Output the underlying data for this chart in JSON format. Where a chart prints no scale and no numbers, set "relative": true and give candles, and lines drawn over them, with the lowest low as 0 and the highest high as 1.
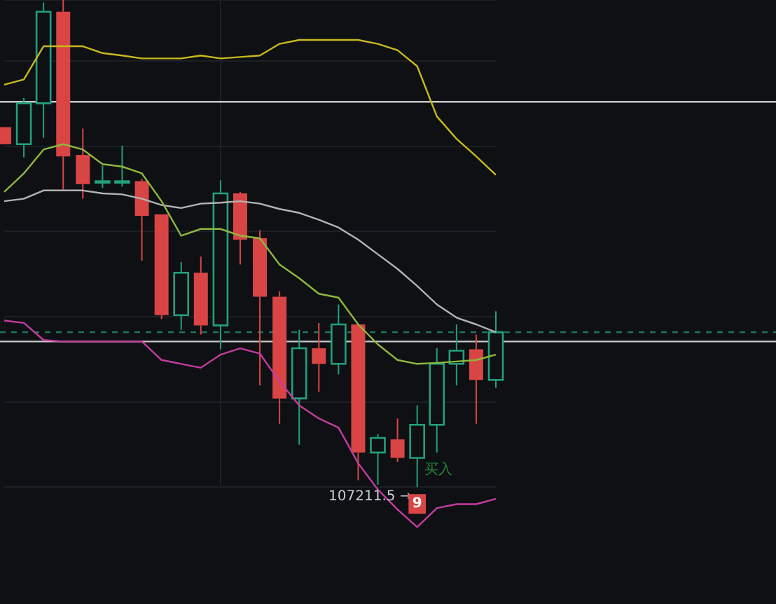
{
  "chart_data": {
    "type": "candlestick",
    "relative": true,
    "grid": true,
    "legend": false,
    "categories": [
      null,
      null,
      null,
      null,
      null,
      null,
      null,
      null,
      null,
      null,
      null,
      null,
      null,
      null,
      null,
      null,
      null,
      null,
      null,
      null,
      null,
      null,
      null,
      null,
      null,
      null
    ],
    "ohlc": [
      [
        0.739,
        0.739,
        0.704,
        0.704
      ],
      [
        0.704,
        0.799,
        0.677,
        0.788
      ],
      [
        0.788,
        0.995,
        0.717,
        0.976
      ],
      [
        0.976,
        1,
        0.611,
        0.679
      ],
      [
        0.682,
        0.736,
        0.592,
        0.622
      ],
      [
        0.625,
        0.66,
        0.614,
        0.628
      ],
      [
        0.625,
        0.701,
        0.617,
        0.628
      ],
      [
        0.628,
        0.633,
        0.465,
        0.557
      ],
      [
        0.56,
        0.56,
        0.345,
        0.353
      ],
      [
        0.353,
        0.462,
        0.323,
        0.44
      ],
      [
        0.44,
        0.473,
        0.313,
        0.332
      ],
      [
        0.332,
        0.63,
        0.283,
        0.603
      ],
      [
        0.603,
        0.606,
        0.457,
        0.508
      ],
      [
        0.511,
        0.527,
        0.209,
        0.391
      ],
      [
        0.391,
        0.402,
        0.13,
        0.182
      ],
      [
        0.182,
        0.323,
        0.087,
        0.285
      ],
      [
        0.285,
        0.337,
        0.196,
        0.253
      ],
      [
        0.253,
        0.375,
        0.231,
        0.334
      ],
      [
        0.334,
        0.334,
        0.014,
        0.071
      ],
      [
        0.071,
        0.109,
        0.005,
        0.101
      ],
      [
        0.098,
        0.141,
        0.052,
        0.06
      ],
      [
        0.06,
        0.168,
        0,
        0.128
      ],
      [
        0.128,
        0.285,
        0.071,
        0.253
      ],
      [
        0.253,
        0.334,
        0.209,
        0.28
      ],
      [
        0.283,
        0.313,
        0.13,
        0.22
      ],
      [
        0.22,
        0.361,
        0.204,
        0.318
      ]
    ],
    "series": [
      {
        "type": "line",
        "color": "#c9b91e",
        "values": [
          0.826,
          0.837,
          0.905,
          0.905,
          0.905,
          0.891,
          0.886,
          0.88,
          0.88,
          0.88,
          0.886,
          0.88,
          0.883,
          0.886,
          0.91,
          0.918,
          0.918,
          0.918,
          0.918,
          0.91,
          0.897,
          0.864,
          0.761,
          0.715,
          0.679,
          0.641
        ]
      },
      {
        "type": "line",
        "color": "#8fb83e",
        "values": [
          0.606,
          0.644,
          0.693,
          0.704,
          0.693,
          0.663,
          0.658,
          0.644,
          0.587,
          0.516,
          0.53,
          0.53,
          0.516,
          0.511,
          0.457,
          0.429,
          0.397,
          0.389,
          0.334,
          0.293,
          0.261,
          0.253,
          0.255,
          0.258,
          0.261,
          0.272
        ]
      },
      {
        "type": "line",
        "color": "#b4b4b4",
        "values": [
          0.587,
          0.592,
          0.609,
          0.609,
          0.609,
          0.603,
          0.601,
          0.592,
          0.579,
          0.573,
          0.582,
          0.584,
          0.587,
          0.582,
          0.571,
          0.563,
          0.549,
          0.533,
          0.508,
          0.478,
          0.448,
          0.413,
          0.375,
          0.348,
          0.334,
          0.318
        ]
      },
      {
        "type": "line",
        "color": "#c43ca0",
        "values": [
          0.342,
          0.337,
          0.302,
          0.299,
          0.299,
          0.299,
          0.299,
          0.299,
          0.261,
          0.253,
          0.245,
          0.272,
          0.285,
          0.274,
          0.217,
          0.168,
          0.141,
          0.122,
          0.049,
          -0.005,
          -0.046,
          -0.082,
          -0.043,
          -0.035,
          -0.035,
          -0.024
        ]
      }
    ],
    "ref_lines": [
      {
        "axis": "y",
        "value": 0.791,
        "color": "#c8c8c8",
        "line_style": "solid"
      },
      {
        "axis": "y",
        "value": 0.299,
        "color": "#c8c8c8",
        "line_style": "solid"
      },
      {
        "axis": "y",
        "value": 0.318,
        "color": "#1f7a62",
        "line_style": "dashed"
      }
    ],
    "annotations": [
      {
        "text": "107211.5 →",
        "y": 0
      },
      "买入",
      "9"
    ]
  }
}
